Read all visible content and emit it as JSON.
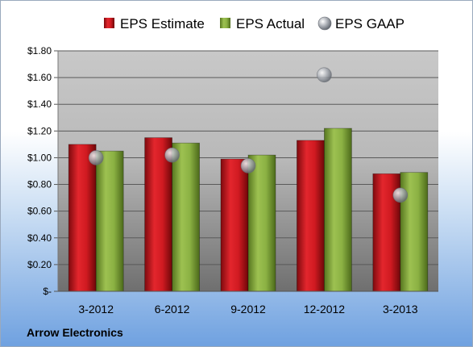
{
  "company": "Arrow Electronics",
  "chart_data": {
    "type": "bar",
    "categories": [
      "3-2012",
      "6-2012",
      "9-2012",
      "12-2012",
      "3-2013"
    ],
    "series": [
      {
        "name": "EPS Estimate",
        "kind": "bar",
        "color": "#c0141c",
        "values": [
          1.1,
          1.15,
          0.99,
          1.13,
          0.88
        ]
      },
      {
        "name": "EPS Actual",
        "kind": "bar",
        "color": "#7fa23a",
        "values": [
          1.05,
          1.11,
          1.02,
          1.22,
          0.89
        ]
      },
      {
        "name": "EPS GAAP",
        "kind": "marker",
        "color": "#a7abb2",
        "values": [
          1.0,
          1.02,
          0.94,
          1.62,
          0.72
        ]
      }
    ],
    "yticks": [
      "$-",
      "$0.20",
      "$0.40",
      "$0.60",
      "$0.80",
      "$1.00",
      "$1.20",
      "$1.40",
      "$1.60",
      "$1.80"
    ],
    "ylim": [
      0,
      1.8
    ],
    "grid": true,
    "legend_position": "top"
  }
}
